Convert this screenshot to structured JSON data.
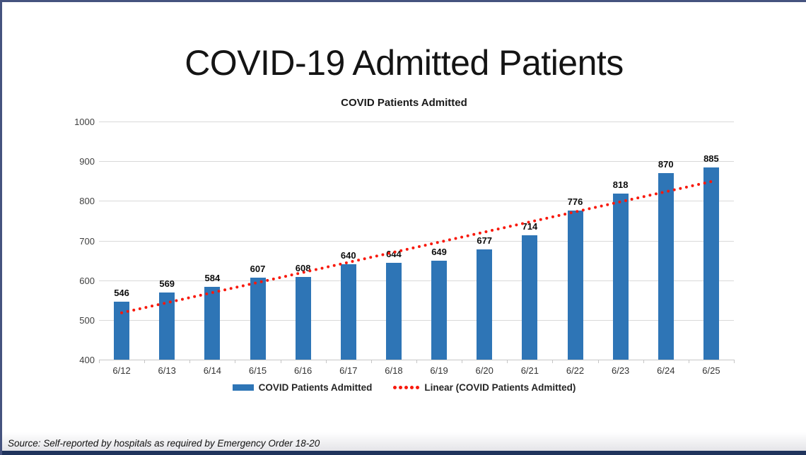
{
  "page": {
    "title": "COVID-19 Admitted Patients",
    "source_note": "Source: Self-reported by hospitals as required by Emergency Order 18-20",
    "colors": {
      "frame_border": "#45537F",
      "bottom_bar": "#20345C",
      "gridline": "#D9D9D9"
    }
  },
  "chart_data": {
    "type": "bar",
    "title": "COVID Patients Admitted",
    "categories": [
      "6/12",
      "6/13",
      "6/14",
      "6/15",
      "6/16",
      "6/17",
      "6/18",
      "6/19",
      "6/20",
      "6/21",
      "6/22",
      "6/23",
      "6/24",
      "6/25"
    ],
    "series": [
      {
        "name": "COVID Patients Admitted",
        "type": "bar",
        "color": "#2E75B6",
        "values": [
          546,
          569,
          584,
          607,
          608,
          640,
          644,
          649,
          677,
          714,
          776,
          818,
          870,
          885
        ]
      },
      {
        "name": "Linear (COVID Patients Admitted)",
        "type": "linear-trendline",
        "style": "dotted",
        "color": "#F8190C",
        "endpoint_values": [
          518,
          851
        ]
      }
    ],
    "xlabel": "",
    "ylabel": "",
    "ylim": [
      400,
      1000
    ],
    "ytick_step": 100,
    "yticks": [
      400,
      500,
      600,
      700,
      800,
      900,
      1000
    ],
    "grid": true,
    "legend_position": "bottom",
    "data_labels": true
  }
}
